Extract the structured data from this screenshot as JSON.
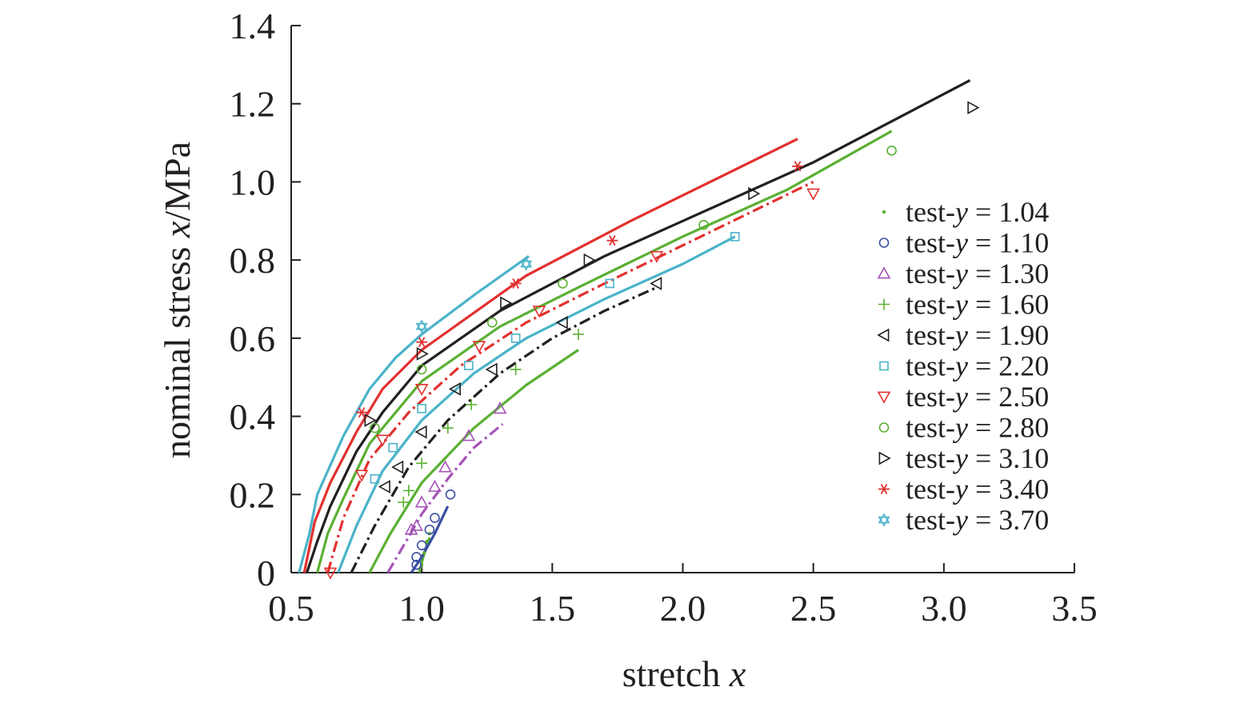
{
  "chart_data": {
    "type": "line",
    "title": "",
    "xlabel": "stretch x",
    "ylabel": "nominal stress x/MPa",
    "xlim": [
      0.5,
      3.5
    ],
    "ylim": [
      0,
      1.4
    ],
    "xticks": [
      "0.5",
      "1.0",
      "1.5",
      "2.0",
      "2.5",
      "3.0",
      "3.5"
    ],
    "yticks": [
      "0",
      "0.2",
      "0.4",
      "0.6",
      "0.8",
      "1.0",
      "1.2",
      "1.4"
    ],
    "xtick_values": [
      0.5,
      1.0,
      1.5,
      2.0,
      2.5,
      3.0,
      3.5
    ],
    "ytick_values": [
      0,
      0.2,
      0.4,
      0.6,
      0.8,
      1.0,
      1.2,
      1.4
    ],
    "legend_position": "right",
    "series": [
      {
        "name": "test-y = 1.04",
        "color": "#5ab033",
        "marker": "dot",
        "line_style": "solid",
        "points": [
          [
            1.0,
            0.02
          ],
          [
            1.01,
            0.05
          ],
          [
            1.02,
            0.08
          ],
          [
            1.03,
            0.1
          ]
        ],
        "fit": [
          [
            0.99,
            0.0
          ],
          [
            1.01,
            0.05
          ],
          [
            1.03,
            0.09
          ]
        ]
      },
      {
        "name": "test-y = 1.10",
        "color": "#3b4ea2",
        "marker": "circle",
        "line_style": "solid",
        "points": [
          [
            0.98,
            0.02
          ],
          [
            0.98,
            0.04
          ],
          [
            1.0,
            0.07
          ],
          [
            1.03,
            0.11
          ],
          [
            1.05,
            0.14
          ],
          [
            1.11,
            0.2
          ]
        ],
        "fit": [
          [
            0.96,
            0.0
          ],
          [
            1.0,
            0.04
          ],
          [
            1.05,
            0.1
          ],
          [
            1.1,
            0.17
          ]
        ]
      },
      {
        "name": "test-y = 1.30",
        "color": "#a553b8",
        "marker": "triangle-up",
        "line_style": "dash-dot",
        "points": [
          [
            0.96,
            0.11
          ],
          [
            0.98,
            0.12
          ],
          [
            1.0,
            0.18
          ],
          [
            1.05,
            0.22
          ],
          [
            1.09,
            0.27
          ],
          [
            1.18,
            0.35
          ],
          [
            1.3,
            0.42
          ]
        ],
        "fit": [
          [
            0.87,
            0.0
          ],
          [
            0.94,
            0.08
          ],
          [
            1.0,
            0.15
          ],
          [
            1.1,
            0.24
          ],
          [
            1.2,
            0.32
          ],
          [
            1.31,
            0.38
          ]
        ]
      },
      {
        "name": "test-y = 1.60",
        "color": "#5ab033",
        "marker": "plus",
        "line_style": "solid",
        "points": [
          [
            0.93,
            0.18
          ],
          [
            0.95,
            0.21
          ],
          [
            1.0,
            0.28
          ],
          [
            1.1,
            0.37
          ],
          [
            1.19,
            0.43
          ],
          [
            1.36,
            0.52
          ],
          [
            1.6,
            0.61
          ]
        ],
        "fit": [
          [
            0.8,
            0.0
          ],
          [
            0.88,
            0.1
          ],
          [
            1.0,
            0.23
          ],
          [
            1.2,
            0.37
          ],
          [
            1.4,
            0.48
          ],
          [
            1.6,
            0.57
          ]
        ]
      },
      {
        "name": "test-y = 1.90",
        "color": "#231f20",
        "marker": "triangle-left",
        "line_style": "dash-dot",
        "points": [
          [
            0.86,
            0.22
          ],
          [
            0.91,
            0.27
          ],
          [
            1.0,
            0.36
          ],
          [
            1.13,
            0.47
          ],
          [
            1.27,
            0.52
          ],
          [
            1.54,
            0.64
          ],
          [
            1.9,
            0.74
          ]
        ],
        "fit": [
          [
            0.73,
            0.0
          ],
          [
            0.82,
            0.12
          ],
          [
            0.95,
            0.27
          ],
          [
            1.1,
            0.39
          ],
          [
            1.3,
            0.51
          ],
          [
            1.5,
            0.6
          ],
          [
            1.7,
            0.67
          ],
          [
            1.9,
            0.73
          ]
        ]
      },
      {
        "name": "test-y = 2.20",
        "color": "#4bb3c9",
        "marker": "square",
        "line_style": "solid",
        "points": [
          [
            0.82,
            0.24
          ],
          [
            0.89,
            0.32
          ],
          [
            1.0,
            0.42
          ],
          [
            1.18,
            0.53
          ],
          [
            1.36,
            0.6
          ],
          [
            1.72,
            0.74
          ],
          [
            2.2,
            0.86
          ]
        ],
        "fit": [
          [
            0.68,
            0.0
          ],
          [
            0.75,
            0.12
          ],
          [
            0.85,
            0.26
          ],
          [
            1.0,
            0.39
          ],
          [
            1.2,
            0.51
          ],
          [
            1.4,
            0.6
          ],
          [
            1.7,
            0.7
          ],
          [
            2.0,
            0.79
          ],
          [
            2.2,
            0.86
          ]
        ]
      },
      {
        "name": "test-y = 2.50",
        "color": "#e2312f",
        "marker": "triangle-down",
        "line_style": "dash-dot",
        "points": [
          [
            0.65,
            0.0
          ],
          [
            0.77,
            0.25
          ],
          [
            0.85,
            0.34
          ],
          [
            1.0,
            0.47
          ],
          [
            1.22,
            0.58
          ],
          [
            1.45,
            0.67
          ],
          [
            1.9,
            0.81
          ],
          [
            2.5,
            0.97
          ]
        ],
        "fit": [
          [
            0.64,
            0.0
          ],
          [
            0.7,
            0.14
          ],
          [
            0.8,
            0.29
          ],
          [
            0.95,
            0.41
          ],
          [
            1.15,
            0.53
          ],
          [
            1.4,
            0.64
          ],
          [
            1.7,
            0.74
          ],
          [
            2.1,
            0.87
          ],
          [
            2.5,
            1.0
          ]
        ]
      },
      {
        "name": "test-y = 2.80",
        "color": "#5ab033",
        "marker": "circle",
        "line_style": "solid",
        "points": [
          [
            0.82,
            0.37
          ],
          [
            1.0,
            0.52
          ],
          [
            1.27,
            0.64
          ],
          [
            1.54,
            0.74
          ],
          [
            2.08,
            0.89
          ],
          [
            2.8,
            1.08
          ]
        ],
        "fit": [
          [
            0.6,
            0.0
          ],
          [
            0.64,
            0.1
          ],
          [
            0.7,
            0.19
          ],
          [
            0.8,
            0.33
          ],
          [
            1.0,
            0.49
          ],
          [
            1.3,
            0.63
          ],
          [
            1.6,
            0.73
          ],
          [
            2.0,
            0.86
          ],
          [
            2.4,
            0.98
          ],
          [
            2.8,
            1.13
          ]
        ]
      },
      {
        "name": "test-y = 3.10",
        "color": "#231f20",
        "marker": "triangle-right",
        "line_style": "solid",
        "points": [
          [
            0.8,
            0.39
          ],
          [
            1.0,
            0.56
          ],
          [
            1.32,
            0.69
          ],
          [
            1.64,
            0.8
          ],
          [
            2.27,
            0.97
          ],
          [
            3.11,
            1.19
          ]
        ],
        "fit": [
          [
            0.56,
            0.0
          ],
          [
            0.6,
            0.08
          ],
          [
            0.65,
            0.17
          ],
          [
            0.75,
            0.31
          ],
          [
            0.85,
            0.41
          ],
          [
            1.0,
            0.53
          ],
          [
            1.3,
            0.67
          ],
          [
            1.7,
            0.81
          ],
          [
            2.0,
            0.9
          ],
          [
            2.5,
            1.05
          ],
          [
            3.1,
            1.26
          ]
        ]
      },
      {
        "name": "test-y = 3.40",
        "color": "#e2312f",
        "marker": "asterisk",
        "line_style": "solid",
        "points": [
          [
            0.77,
            0.41
          ],
          [
            1.0,
            0.59
          ],
          [
            1.36,
            0.74
          ],
          [
            1.73,
            0.85
          ],
          [
            2.44,
            1.04
          ]
        ],
        "fit": [
          [
            0.55,
            0.0
          ],
          [
            0.59,
            0.13
          ],
          [
            0.65,
            0.23
          ],
          [
            0.75,
            0.36
          ],
          [
            0.85,
            0.47
          ],
          [
            1.0,
            0.57
          ],
          [
            1.4,
            0.76
          ],
          [
            1.8,
            0.9
          ],
          [
            2.44,
            1.11
          ]
        ]
      },
      {
        "name": "test-y = 3.70",
        "color": "#4bb3c9",
        "marker": "star",
        "line_style": "solid",
        "points": [
          [
            1.0,
            0.63
          ],
          [
            1.4,
            0.79
          ]
        ],
        "fit": [
          [
            0.53,
            0.0
          ],
          [
            0.57,
            0.1
          ],
          [
            0.6,
            0.2
          ],
          [
            0.7,
            0.35
          ],
          [
            0.8,
            0.47
          ],
          [
            0.9,
            0.55
          ],
          [
            1.0,
            0.61
          ],
          [
            1.2,
            0.71
          ],
          [
            1.41,
            0.81
          ]
        ]
      }
    ]
  }
}
